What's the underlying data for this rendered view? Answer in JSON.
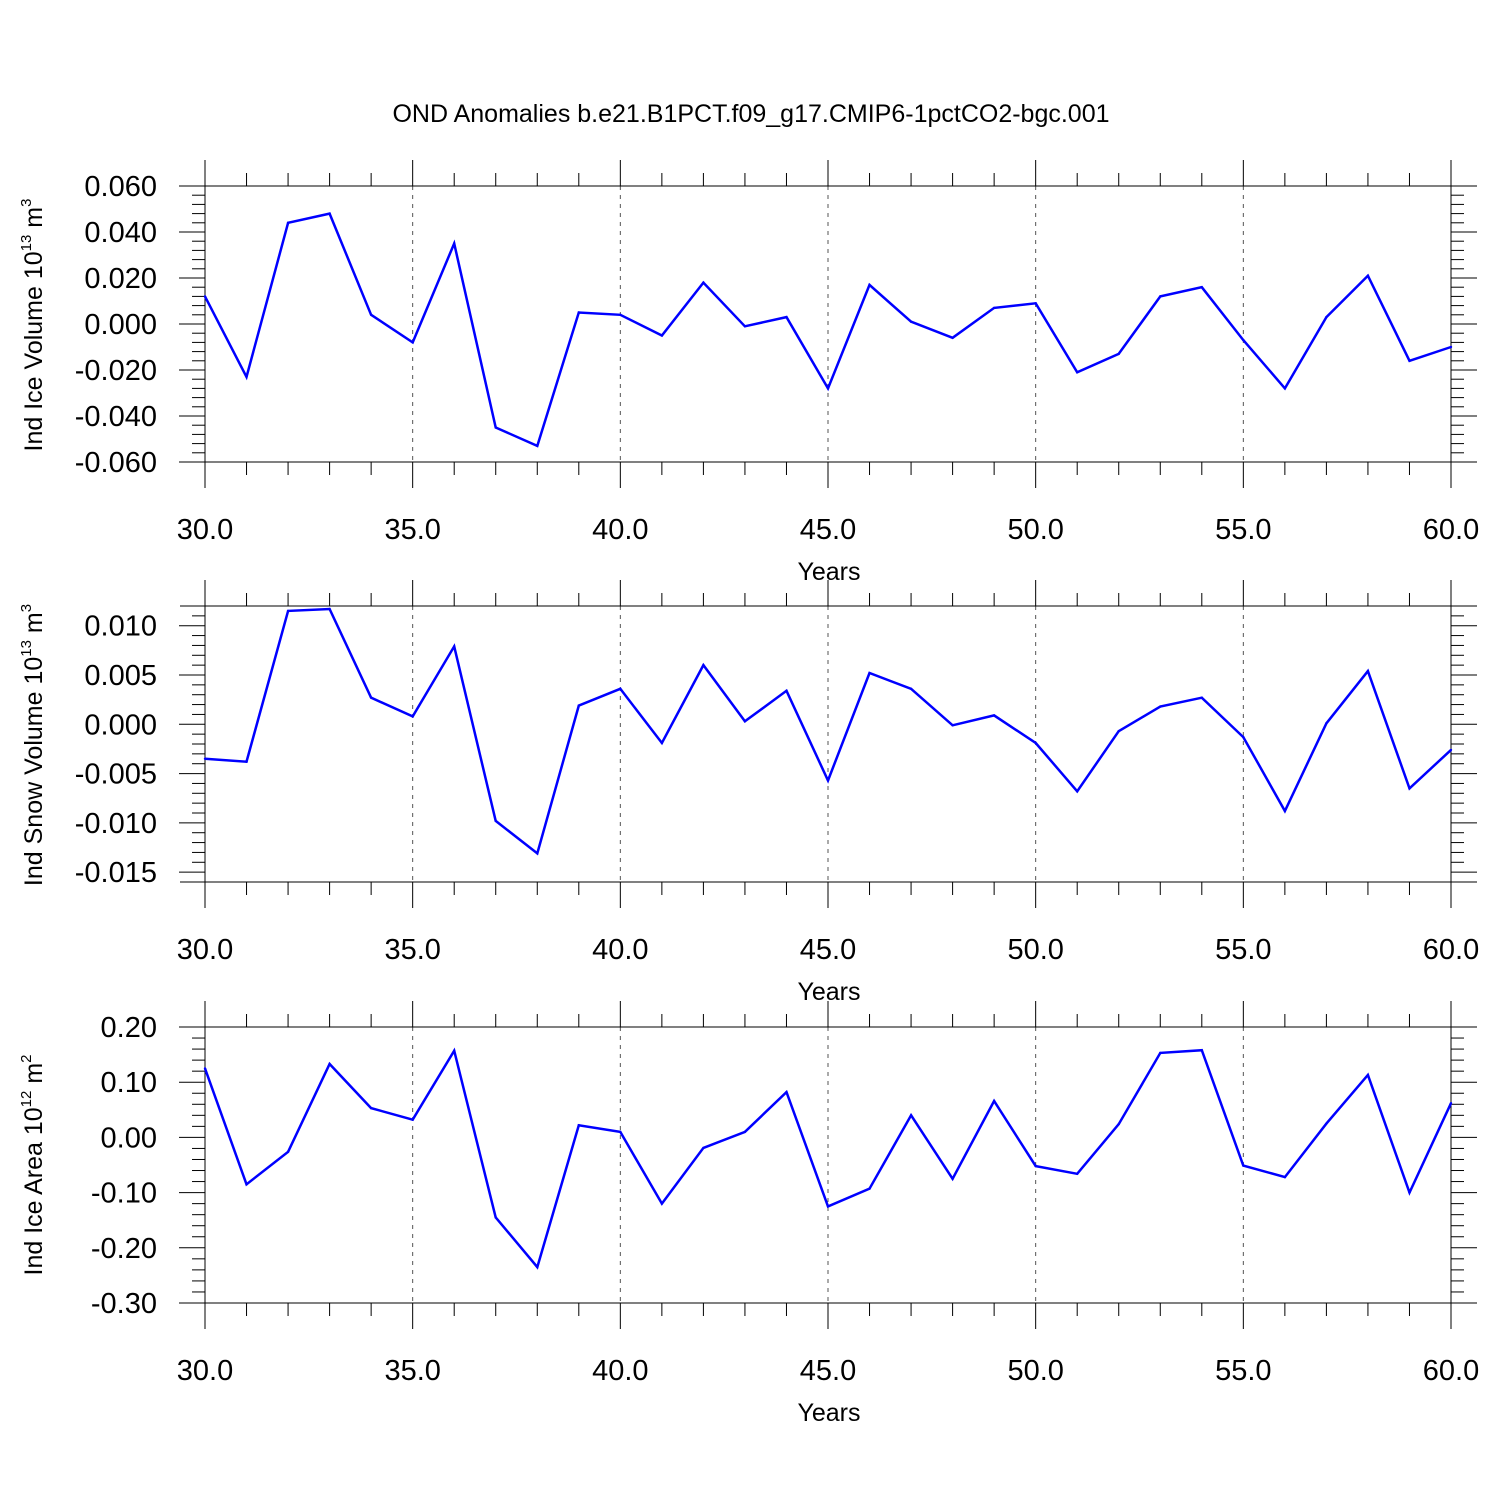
{
  "title": "OND Anomalies b.e21.B1PCT.f09_g17.CMIP6-1pctCO2-bgc.001",
  "colors": {
    "line": "#0000ff",
    "axis": "#000000",
    "grid": "#555555"
  },
  "chart_data": [
    {
      "type": "line",
      "ylabel": "Ind Ice Volume 10",
      "ylabel_exp": "13",
      "ylabel_unit": " m",
      "ylabel_unit_exp": "3",
      "xlabel": "Years",
      "xlim": [
        30,
        60
      ],
      "ylim": [
        -0.06,
        0.06
      ],
      "yticks": [
        -0.06,
        -0.04,
        -0.02,
        0,
        0.02,
        0.04,
        0.06
      ],
      "yticklabels": [
        "-0.060",
        "-0.040",
        "-0.020",
        "0.000",
        "0.020",
        "0.040",
        "0.060"
      ],
      "xticks": [
        30,
        35,
        40,
        45,
        50,
        55,
        60
      ],
      "xticklabels": [
        "30.0",
        "35.0",
        "40.0",
        "45.0",
        "50.0",
        "55.0",
        "60.0"
      ],
      "grid": "dashed vertical at major x ticks",
      "x": [
        30,
        31,
        32,
        33,
        34,
        35,
        36,
        37,
        38,
        39,
        40,
        41,
        42,
        43,
        44,
        45,
        46,
        47,
        48,
        49,
        50,
        51,
        52,
        53,
        54,
        55,
        56,
        57,
        58,
        59,
        60
      ],
      "y": [
        0.012,
        -0.023,
        0.044,
        0.048,
        0.004,
        -0.008,
        0.035,
        -0.045,
        -0.053,
        0.005,
        0.004,
        -0.005,
        0.018,
        -0.001,
        0.003,
        -0.028,
        0.017,
        0.001,
        -0.006,
        0.007,
        0.009,
        -0.021,
        -0.013,
        0.012,
        0.016,
        -0.007,
        -0.028,
        0.003,
        0.021,
        -0.016,
        -0.01
      ]
    },
    {
      "type": "line",
      "ylabel": "Ind Snow Volume 10",
      "ylabel_exp": "13",
      "ylabel_unit": " m",
      "ylabel_unit_exp": "3",
      "xlabel": "Years",
      "xlim": [
        30,
        60
      ],
      "ylim": [
        -0.016,
        0.012
      ],
      "yticks": [
        -0.015,
        -0.01,
        -0.005,
        0,
        0.005,
        0.01
      ],
      "yticklabels": [
        "-0.015",
        "-0.010",
        "-0.005",
        "0.000",
        "0.005",
        "0.010"
      ],
      "xticks": [
        30,
        35,
        40,
        45,
        50,
        55,
        60
      ],
      "xticklabels": [
        "30.0",
        "35.0",
        "40.0",
        "45.0",
        "50.0",
        "55.0",
        "60.0"
      ],
      "grid": "dashed vertical at major x ticks",
      "x": [
        30,
        31,
        32,
        33,
        34,
        35,
        36,
        37,
        38,
        39,
        40,
        41,
        42,
        43,
        44,
        45,
        46,
        47,
        48,
        49,
        50,
        51,
        52,
        53,
        54,
        55,
        56,
        57,
        58,
        59,
        60
      ],
      "y": [
        -0.0035,
        -0.0038,
        0.0115,
        0.0117,
        0.0027,
        0.0008,
        0.0079,
        -0.0098,
        -0.0131,
        0.0019,
        0.0036,
        -0.0019,
        0.006,
        0.0003,
        0.0034,
        -0.0057,
        0.0052,
        0.0036,
        -0.0001,
        0.0009,
        -0.0019,
        -0.0068,
        -0.0007,
        0.0018,
        0.0027,
        -0.0013,
        -0.0088,
        0.0001,
        0.0054,
        -0.0065,
        -0.0026
      ]
    },
    {
      "type": "line",
      "ylabel": "Ind Ice Area 10",
      "ylabel_exp": "12",
      "ylabel_unit": " m",
      "ylabel_unit_exp": "2",
      "xlabel": "Years",
      "xlim": [
        30,
        60
      ],
      "ylim": [
        -0.3,
        0.2
      ],
      "yticks": [
        -0.3,
        -0.2,
        -0.1,
        0,
        0.1,
        0.2
      ],
      "yticklabels": [
        "-0.30",
        "-0.20",
        "-0.10",
        "0.00",
        "0.10",
        "0.20"
      ],
      "xticks": [
        30,
        35,
        40,
        45,
        50,
        55,
        60
      ],
      "xticklabels": [
        "30.0",
        "35.0",
        "40.0",
        "45.0",
        "50.0",
        "55.0",
        "60.0"
      ],
      "grid": "dashed vertical at major x ticks",
      "x": [
        30,
        31,
        32,
        33,
        34,
        35,
        36,
        37,
        38,
        39,
        40,
        41,
        42,
        43,
        44,
        45,
        46,
        47,
        48,
        49,
        50,
        51,
        52,
        53,
        54,
        55,
        56,
        57,
        58,
        59,
        60
      ],
      "y": [
        0.125,
        -0.085,
        -0.026,
        0.133,
        0.053,
        0.032,
        0.157,
        -0.145,
        -0.235,
        0.022,
        0.01,
        -0.12,
        -0.019,
        0.01,
        0.082,
        -0.125,
        -0.093,
        0.04,
        -0.075,
        0.066,
        -0.052,
        -0.066,
        0.024,
        0.153,
        0.158,
        -0.051,
        -0.072,
        0.025,
        0.113,
        -0.1,
        0.062
      ]
    }
  ]
}
